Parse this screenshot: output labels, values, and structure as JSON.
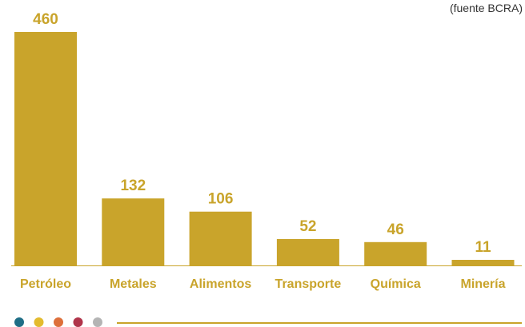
{
  "source_note": "(fuente BCRA)",
  "colors": {
    "bar": "#C9A42B",
    "text": "#C9A42B",
    "axis": "#C9A42B",
    "source_text": "#333333",
    "dots": [
      "#1F6E86",
      "#E3BB2E",
      "#DD6F3A",
      "#B0344A",
      "#B4B4B4"
    ]
  },
  "chart_data": {
    "type": "bar",
    "title": "",
    "xlabel": "",
    "ylabel": "",
    "ylim": [
      0,
      460
    ],
    "grid": false,
    "categories": [
      "Petróleo",
      "Metales",
      "Alimentos",
      "Transporte",
      "Química",
      "Minería"
    ],
    "values": [
      460,
      132,
      106,
      52,
      46,
      11
    ],
    "value_labels": [
      "460",
      "132",
      "106",
      "52",
      "46",
      "11"
    ]
  }
}
